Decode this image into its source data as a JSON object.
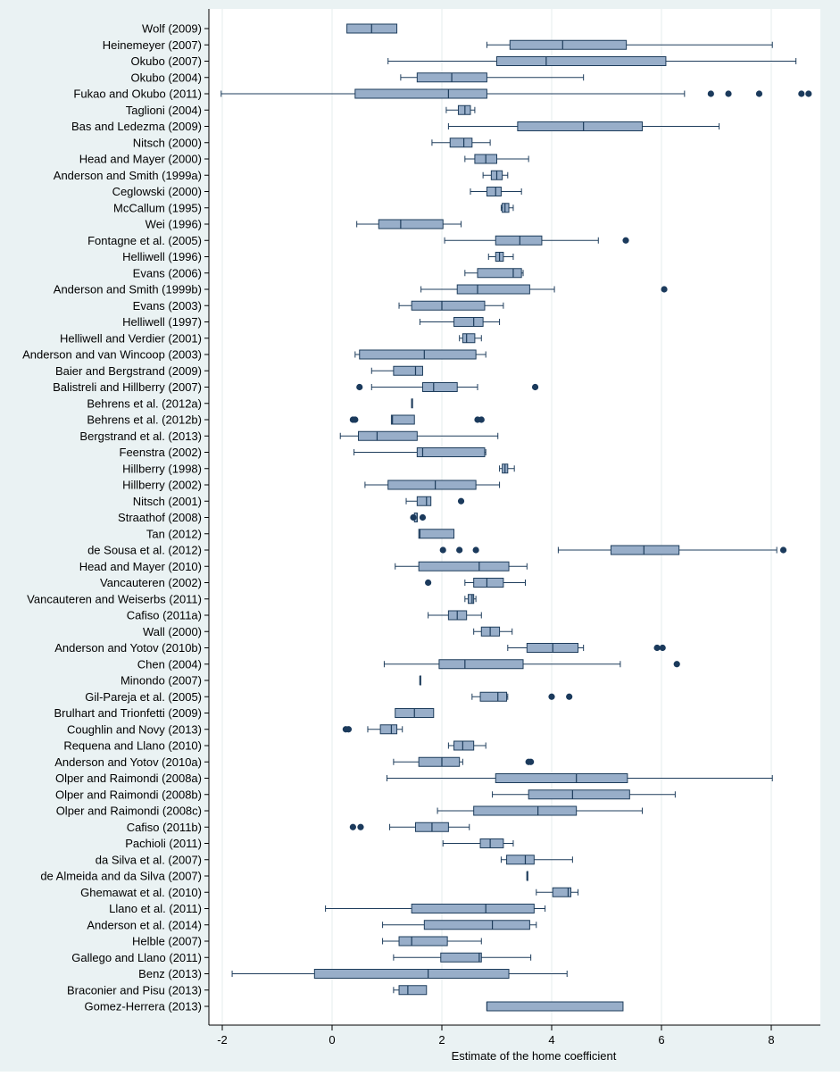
{
  "chart_data": {
    "type": "boxplot",
    "orientation": "horizontal",
    "title": "",
    "xlabel": "Estimate of the home coefficient",
    "ylabel": "",
    "xlim": [
      -2.2,
      8.8
    ],
    "xticks": [
      -2,
      0,
      2,
      4,
      6,
      8
    ],
    "grid": true,
    "legend": "none",
    "colors": {
      "box_fill": "#98aec9",
      "box_stroke": "#1e3d5c",
      "outlier": "#1b3a5c",
      "plot_bg": "#ffffff",
      "outer_bg": "#eaf2f3",
      "gridline": "#e6ecee"
    },
    "studies": [
      {
        "label": "Wolf (2009)",
        "min": 0.27,
        "q1": 0.27,
        "median": 0.72,
        "q3": 1.18,
        "max": 1.18,
        "outliers": []
      },
      {
        "label": "Heinemeyer (2007)",
        "min": 2.82,
        "q1": 3.24,
        "median": 4.2,
        "q3": 5.36,
        "max": 8.02,
        "outliers": []
      },
      {
        "label": "Okubo (2007)",
        "min": 1.02,
        "q1": 3.0,
        "median": 3.9,
        "q3": 6.08,
        "max": 8.45,
        "outliers": []
      },
      {
        "label": "Okubo (2004)",
        "min": 1.25,
        "q1": 1.55,
        "median": 2.18,
        "q3": 2.82,
        "max": 4.58,
        "outliers": []
      },
      {
        "label": "Fukao and Okubo (2011)",
        "min": -2.02,
        "q1": 0.42,
        "median": 2.12,
        "q3": 2.82,
        "max": 6.42,
        "outliers": [
          6.9,
          7.22,
          7.78,
          8.55,
          8.68
        ]
      },
      {
        "label": "Taglioni (2004)",
        "min": 2.08,
        "q1": 2.3,
        "median": 2.42,
        "q3": 2.52,
        "max": 2.6,
        "outliers": []
      },
      {
        "label": "Bas and Ledezma (2009)",
        "min": 2.12,
        "q1": 3.38,
        "median": 4.58,
        "q3": 5.65,
        "max": 7.05,
        "outliers": []
      },
      {
        "label": "Nitsch (2000)",
        "min": 1.82,
        "q1": 2.15,
        "median": 2.4,
        "q3": 2.55,
        "max": 2.88,
        "outliers": []
      },
      {
        "label": "Head and Mayer (2000)",
        "min": 2.42,
        "q1": 2.6,
        "median": 2.8,
        "q3": 3.0,
        "max": 3.58,
        "outliers": []
      },
      {
        "label": "Anderson and Smith (1999a)",
        "min": 2.75,
        "q1": 2.9,
        "median": 3.0,
        "q3": 3.1,
        "max": 3.2,
        "outliers": []
      },
      {
        "label": "Ceglowski (2000)",
        "min": 2.52,
        "q1": 2.82,
        "median": 2.98,
        "q3": 3.08,
        "max": 3.45,
        "outliers": []
      },
      {
        "label": "McCallum (1995)",
        "min": 3.08,
        "q1": 3.1,
        "median": 3.15,
        "q3": 3.22,
        "max": 3.3,
        "outliers": []
      },
      {
        "label": "Wei (1996)",
        "min": 0.45,
        "q1": 0.85,
        "median": 1.25,
        "q3": 2.02,
        "max": 2.35,
        "outliers": []
      },
      {
        "label": "Fontagne et al. (2005)",
        "min": 2.05,
        "q1": 2.98,
        "median": 3.42,
        "q3": 3.82,
        "max": 4.85,
        "outliers": [
          5.35
        ]
      },
      {
        "label": "Helliwell (1996)",
        "min": 2.85,
        "q1": 2.98,
        "median": 3.05,
        "q3": 3.12,
        "max": 3.3,
        "outliers": []
      },
      {
        "label": "Evans (2006)",
        "min": 2.42,
        "q1": 2.65,
        "median": 3.3,
        "q3": 3.45,
        "max": 3.48,
        "outliers": []
      },
      {
        "label": "Anderson and Smith (1999b)",
        "min": 1.62,
        "q1": 2.28,
        "median": 2.65,
        "q3": 3.6,
        "max": 4.05,
        "outliers": [
          6.05
        ]
      },
      {
        "label": "Evans (2003)",
        "min": 1.22,
        "q1": 1.45,
        "median": 2.0,
        "q3": 2.78,
        "max": 3.12,
        "outliers": []
      },
      {
        "label": "Helliwell (1997)",
        "min": 1.6,
        "q1": 2.22,
        "median": 2.58,
        "q3": 2.75,
        "max": 3.05,
        "outliers": []
      },
      {
        "label": "Helliwell and Verdier (2001)",
        "min": 2.32,
        "q1": 2.38,
        "median": 2.45,
        "q3": 2.6,
        "max": 2.72,
        "outliers": []
      },
      {
        "label": "Anderson and van Wincoop (2003)",
        "min": 0.42,
        "q1": 0.5,
        "median": 1.68,
        "q3": 2.62,
        "max": 2.8,
        "outliers": []
      },
      {
        "label": "Baier and Bergstrand (2009)",
        "min": 0.72,
        "q1": 1.12,
        "median": 1.52,
        "q3": 1.65,
        "max": 1.65,
        "outliers": []
      },
      {
        "label": "Balistreli and Hillberry (2007)",
        "min": 0.72,
        "q1": 1.65,
        "median": 1.85,
        "q3": 2.28,
        "max": 2.65,
        "outliers": [
          0.5,
          3.7
        ]
      },
      {
        "label": "Behrens et al. (2012a)",
        "min": 1.45,
        "q1": 1.45,
        "median": 1.45,
        "q3": 1.45,
        "max": 1.45,
        "outliers": []
      },
      {
        "label": "Behrens et al. (2012b)",
        "min": 1.08,
        "q1": 1.08,
        "median": 1.1,
        "q3": 1.5,
        "max": 1.5,
        "outliers": [
          0.38,
          0.42,
          2.65,
          2.72
        ]
      },
      {
        "label": "Bergstrand et al. (2013)",
        "min": 0.15,
        "q1": 0.48,
        "median": 0.82,
        "q3": 1.55,
        "max": 3.02,
        "outliers": []
      },
      {
        "label": "Feenstra (2002)",
        "min": 0.4,
        "q1": 1.55,
        "median": 1.65,
        "q3": 2.78,
        "max": 2.8,
        "outliers": []
      },
      {
        "label": "Hillberry (1998)",
        "min": 3.05,
        "q1": 3.1,
        "median": 3.15,
        "q3": 3.2,
        "max": 3.32,
        "outliers": []
      },
      {
        "label": "Hillberry (2002)",
        "min": 0.6,
        "q1": 1.02,
        "median": 1.88,
        "q3": 2.62,
        "max": 3.05,
        "outliers": []
      },
      {
        "label": "Nitsch (2001)",
        "min": 1.35,
        "q1": 1.55,
        "median": 1.72,
        "q3": 1.8,
        "max": 1.8,
        "outliers": [
          2.35
        ]
      },
      {
        "label": "Straathof (2008)",
        "min": 1.5,
        "q1": 1.5,
        "median": 1.55,
        "q3": 1.55,
        "max": 1.55,
        "outliers": [
          1.48,
          1.65
        ]
      },
      {
        "label": "Tan (2012)",
        "min": 1.58,
        "q1": 1.58,
        "median": 1.6,
        "q3": 2.22,
        "max": 2.22,
        "outliers": []
      },
      {
        "label": "de Sousa et al. (2012)",
        "min": 4.12,
        "q1": 5.08,
        "median": 5.68,
        "q3": 6.32,
        "max": 8.1,
        "outliers": [
          2.02,
          2.32,
          2.62,
          8.22
        ]
      },
      {
        "label": "Head and Mayer (2010)",
        "min": 1.15,
        "q1": 1.58,
        "median": 2.68,
        "q3": 3.22,
        "max": 3.55,
        "outliers": []
      },
      {
        "label": "Vancauteren (2002)",
        "min": 2.42,
        "q1": 2.58,
        "median": 2.82,
        "q3": 3.12,
        "max": 3.52,
        "outliers": [
          1.75
        ]
      },
      {
        "label": "Vancauteren and Weiserbs (2011)",
        "min": 2.42,
        "q1": 2.48,
        "median": 2.55,
        "q3": 2.58,
        "max": 2.62,
        "outliers": []
      },
      {
        "label": "Cafiso (2011a)",
        "min": 1.75,
        "q1": 2.12,
        "median": 2.28,
        "q3": 2.45,
        "max": 2.72,
        "outliers": []
      },
      {
        "label": "Wall (2000)",
        "min": 2.58,
        "q1": 2.72,
        "median": 2.88,
        "q3": 3.05,
        "max": 3.28,
        "outliers": []
      },
      {
        "label": "Anderson and Yotov (2010b)",
        "min": 3.2,
        "q1": 3.55,
        "median": 4.02,
        "q3": 4.48,
        "max": 4.58,
        "outliers": [
          5.92,
          6.02
        ]
      },
      {
        "label": "Chen (2004)",
        "min": 0.95,
        "q1": 1.95,
        "median": 2.42,
        "q3": 3.48,
        "max": 5.25,
        "outliers": [
          6.28
        ]
      },
      {
        "label": "Minondo (2007)",
        "min": 1.6,
        "q1": 1.6,
        "median": 1.6,
        "q3": 1.6,
        "max": 1.6,
        "outliers": []
      },
      {
        "label": "Gil-Pareja et al. (2005)",
        "min": 2.55,
        "q1": 2.7,
        "median": 3.02,
        "q3": 3.18,
        "max": 3.2,
        "outliers": [
          4.0,
          4.32
        ]
      },
      {
        "label": "Brulhart and Trionfetti (2009)",
        "min": 1.15,
        "q1": 1.15,
        "median": 1.5,
        "q3": 1.85,
        "max": 1.85,
        "outliers": []
      },
      {
        "label": "Coughlin and Novy (2013)",
        "min": 0.65,
        "q1": 0.88,
        "median": 1.08,
        "q3": 1.18,
        "max": 1.28,
        "outliers": [
          0.25,
          0.3
        ]
      },
      {
        "label": "Requena and Llano (2010)",
        "min": 2.12,
        "q1": 2.22,
        "median": 2.38,
        "q3": 2.58,
        "max": 2.8,
        "outliers": []
      },
      {
        "label": "Anderson and Yotov (2010a)",
        "min": 1.12,
        "q1": 1.58,
        "median": 2.0,
        "q3": 2.32,
        "max": 2.38,
        "outliers": [
          3.58,
          3.62
        ]
      },
      {
        "label": "Olper and Raimondi (2008a)",
        "min": 1.0,
        "q1": 2.98,
        "median": 4.45,
        "q3": 5.38,
        "max": 8.02,
        "outliers": []
      },
      {
        "label": "Olper and Raimondi (2008b)",
        "min": 2.92,
        "q1": 3.58,
        "median": 4.38,
        "q3": 5.42,
        "max": 6.25,
        "outliers": []
      },
      {
        "label": "Olper and Raimondi (2008c)",
        "min": 1.92,
        "q1": 2.58,
        "median": 3.75,
        "q3": 4.45,
        "max": 5.65,
        "outliers": []
      },
      {
        "label": "Cafiso (2011b)",
        "min": 1.05,
        "q1": 1.52,
        "median": 1.82,
        "q3": 2.12,
        "max": 2.5,
        "outliers": [
          0.38,
          0.52
        ]
      },
      {
        "label": "Pachioli (2011)",
        "min": 2.02,
        "q1": 2.7,
        "median": 2.88,
        "q3": 3.12,
        "max": 3.3,
        "outliers": []
      },
      {
        "label": "da Silva et al. (2007)",
        "min": 3.08,
        "q1": 3.18,
        "median": 3.52,
        "q3": 3.68,
        "max": 4.38,
        "outliers": []
      },
      {
        "label": "de Almeida and da Silva (2007)",
        "min": 3.55,
        "q1": 3.55,
        "median": 3.55,
        "q3": 3.55,
        "max": 3.55,
        "outliers": []
      },
      {
        "label": "Ghemawat et al. (2010)",
        "min": 3.72,
        "q1": 4.02,
        "median": 4.3,
        "q3": 4.35,
        "max": 4.48,
        "outliers": []
      },
      {
        "label": "Llano et al. (2011)",
        "min": -0.12,
        "q1": 1.45,
        "median": 2.8,
        "q3": 3.68,
        "max": 3.88,
        "outliers": []
      },
      {
        "label": "Anderson et al. (2014)",
        "min": 0.92,
        "q1": 1.68,
        "median": 2.92,
        "q3": 3.6,
        "max": 3.72,
        "outliers": []
      },
      {
        "label": "Helble (2007)",
        "min": 0.92,
        "q1": 1.22,
        "median": 1.45,
        "q3": 2.1,
        "max": 2.72,
        "outliers": []
      },
      {
        "label": "Gallego and Llano (2011)",
        "min": 1.12,
        "q1": 1.98,
        "median": 2.68,
        "q3": 2.72,
        "max": 3.62,
        "outliers": []
      },
      {
        "label": "Benz (2013)",
        "min": -1.82,
        "q1": -0.32,
        "median": 1.75,
        "q3": 3.22,
        "max": 4.28,
        "outliers": []
      },
      {
        "label": "Braconier and Pisu (2013)",
        "min": 1.12,
        "q1": 1.22,
        "median": 1.38,
        "q3": 1.72,
        "max": 1.72,
        "outliers": []
      },
      {
        "label": "Gomez-Herrera (2013)",
        "min": 2.82,
        "q1": 2.82,
        "median": 2.82,
        "q3": 5.3,
        "max": 5.3,
        "outliers": []
      }
    ]
  }
}
